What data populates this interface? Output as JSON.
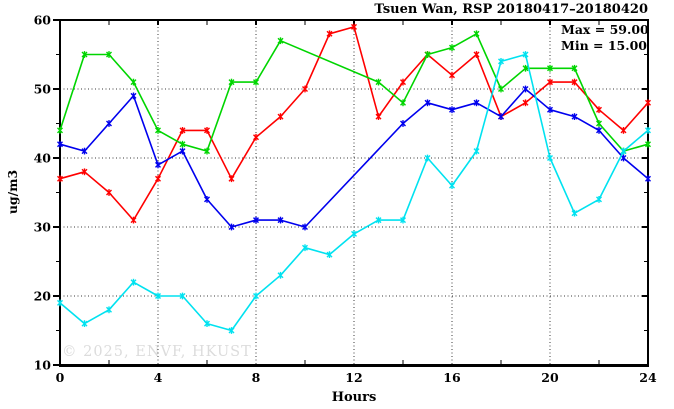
{
  "chart_data": {
    "type": "line",
    "title": "Tsuen Wan, RSP 20180417–20180420",
    "xlabel": "Hours",
    "ylabel": "ug/m3",
    "xlim": [
      0,
      24
    ],
    "ylim": [
      10,
      60
    ],
    "x_ticks": [
      0,
      4,
      8,
      12,
      16,
      20,
      24
    ],
    "y_ticks": [
      10,
      20,
      30,
      40,
      50,
      60
    ],
    "x_minor_step": 2,
    "y_minor_step": 5,
    "grid": "dotted",
    "legend_position": "none",
    "annotations": {
      "max_label": "Max = 59.00",
      "min_label": "Min = 15.00"
    },
    "watermark": "© 2025, ENVF, HKUST",
    "x": [
      0,
      1,
      2,
      3,
      4,
      5,
      6,
      7,
      8,
      9,
      10,
      11,
      12,
      13,
      14,
      15,
      16,
      17,
      18,
      19,
      20,
      21,
      22,
      23,
      24
    ],
    "series": [
      {
        "name": "red",
        "color": "#ff0000",
        "values": [
          37,
          38,
          35,
          31,
          37,
          44,
          44,
          37,
          43,
          46,
          50,
          58,
          59,
          46,
          51,
          55,
          52,
          55,
          46,
          48,
          51,
          51,
          47,
          44,
          48
        ]
      },
      {
        "name": "green",
        "color": "#00d500",
        "values": [
          44,
          55,
          55,
          51,
          44,
          42,
          41,
          51,
          51,
          57,
          null,
          null,
          null,
          51,
          48,
          55,
          56,
          58,
          50,
          53,
          53,
          53,
          45,
          41,
          42
        ]
      },
      {
        "name": "blue",
        "color": "#0000ee",
        "values": [
          42,
          41,
          45,
          49,
          39,
          41,
          34,
          30,
          31,
          31,
          30,
          null,
          null,
          null,
          45,
          48,
          47,
          48,
          46,
          50,
          47,
          46,
          44,
          40,
          37
        ]
      },
      {
        "name": "cyan",
        "color": "#00e2f0",
        "values": [
          19,
          16,
          18,
          22,
          20,
          20,
          16,
          15,
          20,
          23,
          27,
          26,
          29,
          31,
          31,
          40,
          36,
          41,
          54,
          55,
          40,
          32,
          34,
          41,
          44
        ]
      }
    ]
  }
}
